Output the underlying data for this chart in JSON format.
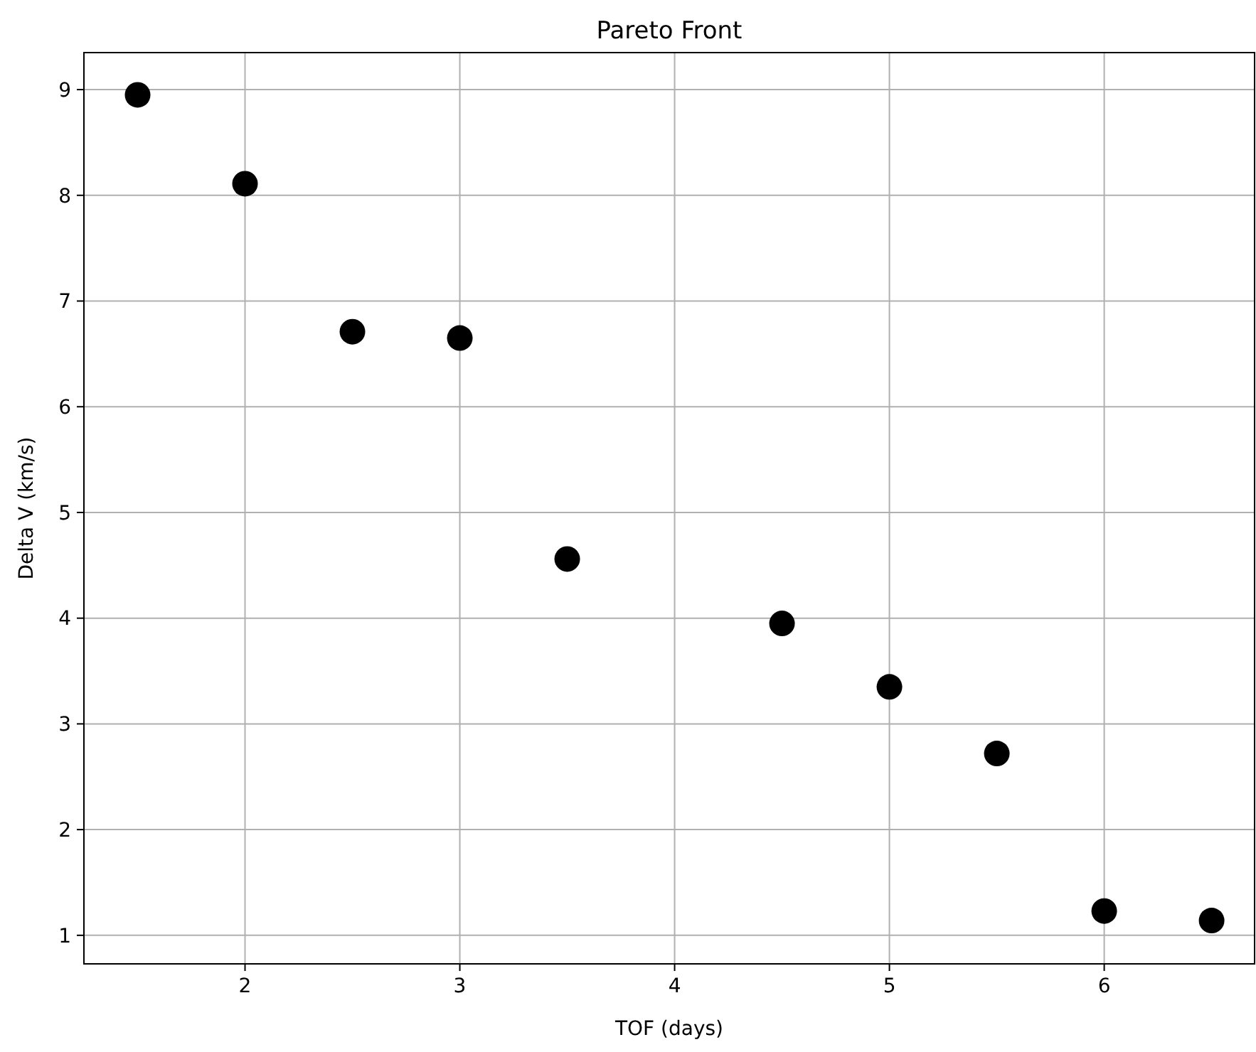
{
  "chart_data": {
    "type": "scatter",
    "title": "Pareto Front",
    "xlabel": "TOF (days)",
    "ylabel": "Delta V (km/s)",
    "x": [
      1.5,
      2,
      2.5,
      3,
      3.5,
      4.5,
      5,
      5.5,
      6,
      6.5
    ],
    "series": [
      {
        "color": "#000000",
        "values": [
          8.95,
          8.11,
          6.71,
          6.65,
          4.56,
          3.95,
          3.35,
          2.72,
          1.23,
          1.14
        ]
      }
    ],
    "xlim": [
      1.25,
      6.7
    ],
    "ylim": [
      0.73,
      9.35
    ],
    "xticks": [
      2,
      3,
      4,
      5,
      6
    ],
    "yticks": [
      1,
      2,
      3,
      4,
      5,
      6,
      7,
      8,
      9
    ],
    "grid": true,
    "marker": "circle"
  }
}
